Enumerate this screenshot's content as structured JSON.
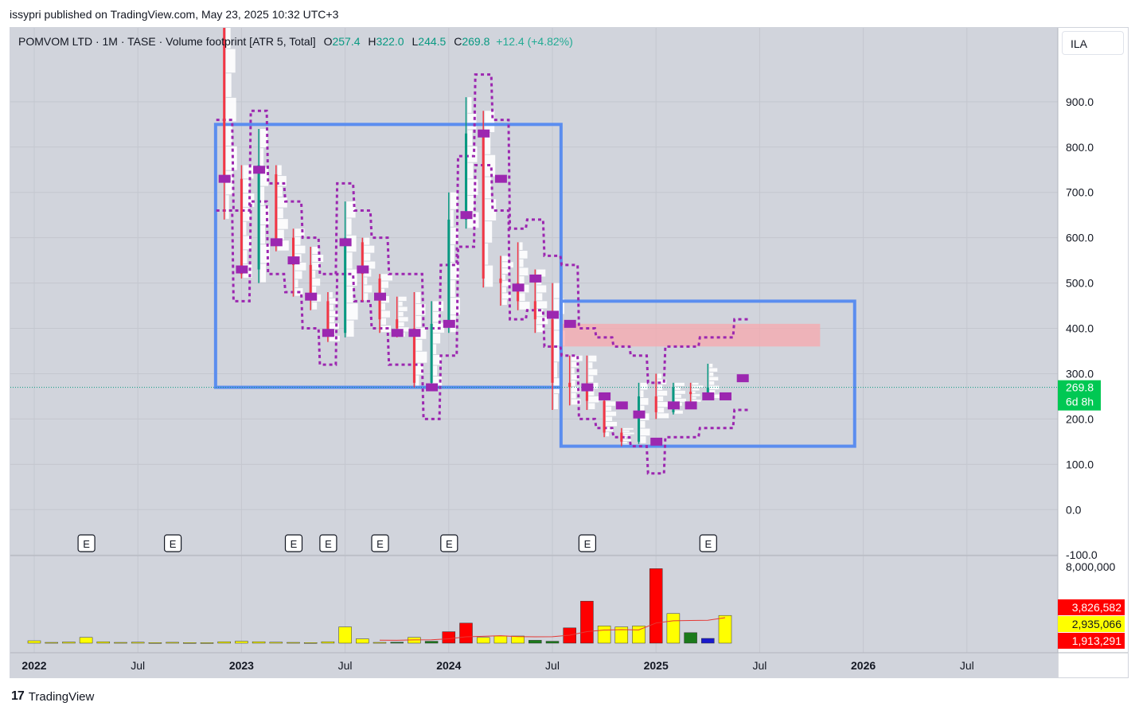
{
  "credit": "issypri published on TradingView.com, May 23, 2025 10:32 UTC+3",
  "legend": {
    "symbol": "POMVOM LTD · 1M · TASE · Volume footprint [ATR 5, Total]",
    "o_label": "O",
    "o_value": "257.4",
    "h_label": "H",
    "h_value": "322.0",
    "l_label": "L",
    "l_value": "244.5",
    "c_label": "C",
    "c_value": "269.8",
    "change": "+12.4 (+4.82%)"
  },
  "currency": "ILA",
  "footer": {
    "logo_mark": "17",
    "logo_text": "TradingView"
  },
  "colors": {
    "up": "#089981",
    "down": "#f23645",
    "poc": "#9c27b0",
    "box": "#5b8def",
    "zone": "#f7a8ad",
    "volume_yellow": "#ffff00",
    "volume_red": "#ff0000",
    "volume_green": "#1b7a1b",
    "volume_blue": "#1a1acc",
    "price_label": "#00c853"
  },
  "chart_data": {
    "type": "candlestick",
    "interval": "1M",
    "y_ticks": [
      "900.0",
      "800.0",
      "700.0",
      "600.0",
      "500.0",
      "400.0",
      "300.0",
      "200.0",
      "100.0",
      "0.0",
      "-100.0"
    ],
    "y_tick_values": [
      900,
      800,
      700,
      600,
      500,
      400,
      300,
      200,
      100,
      0,
      -100
    ],
    "ylim": [
      -100,
      1070
    ],
    "x_labels": [
      "2022",
      "Jul",
      "2023",
      "Jul",
      "2024",
      "Jul",
      "2025",
      "Jul",
      "2026",
      "Jul"
    ],
    "x_label_index": [
      0,
      6,
      12,
      18,
      24,
      30,
      36,
      42,
      48,
      54
    ],
    "last_price_label": "269.8",
    "countdown_label": "6d 8h",
    "last_price": 269.8,
    "earnings_markers": {
      "label": "E",
      "month_index": [
        3,
        8,
        15,
        17,
        20,
        24,
        32,
        39
      ]
    },
    "candles": [
      {
        "i": 11,
        "o": 1070,
        "h": 1070,
        "l": 640,
        "c": 730
      },
      {
        "i": 12,
        "o": 730,
        "h": 760,
        "l": 510,
        "c": 520
      },
      {
        "i": 13,
        "o": 530,
        "h": 840,
        "l": 500,
        "c": 760
      },
      {
        "i": 14,
        "o": 740,
        "h": 760,
        "l": 570,
        "c": 590
      },
      {
        "i": 15,
        "o": 600,
        "h": 620,
        "l": 470,
        "c": 540
      },
      {
        "i": 16,
        "o": 540,
        "h": 580,
        "l": 440,
        "c": 470
      },
      {
        "i": 17,
        "o": 460,
        "h": 480,
        "l": 370,
        "c": 390
      },
      {
        "i": 18,
        "o": 390,
        "h": 680,
        "l": 380,
        "c": 600
      },
      {
        "i": 19,
        "o": 590,
        "h": 600,
        "l": 460,
        "c": 520
      },
      {
        "i": 20,
        "o": 510,
        "h": 520,
        "l": 390,
        "c": 420
      },
      {
        "i": 21,
        "o": 420,
        "h": 470,
        "l": 380,
        "c": 400
      },
      {
        "i": 22,
        "o": 400,
        "h": 480,
        "l": 270,
        "c": 280
      },
      {
        "i": 23,
        "o": 280,
        "h": 460,
        "l": 270,
        "c": 410
      },
      {
        "i": 24,
        "o": 410,
        "h": 700,
        "l": 390,
        "c": 640
      },
      {
        "i": 25,
        "o": 640,
        "h": 910,
        "l": 620,
        "c": 830
      },
      {
        "i": 26,
        "o": 830,
        "h": 880,
        "l": 490,
        "c": 510
      },
      {
        "i": 27,
        "o": 510,
        "h": 560,
        "l": 450,
        "c": 500
      },
      {
        "i": 28,
        "o": 500,
        "h": 590,
        "l": 440,
        "c": 460
      },
      {
        "i": 29,
        "o": 460,
        "h": 530,
        "l": 390,
        "c": 420
      },
      {
        "i": 30,
        "o": 420,
        "h": 500,
        "l": 220,
        "c": 280
      },
      {
        "i": 31,
        "o": 280,
        "h": 340,
        "l": 230,
        "c": 270
      },
      {
        "i": 32,
        "o": 270,
        "h": 340,
        "l": 220,
        "c": 240
      },
      {
        "i": 33,
        "o": 240,
        "h": 250,
        "l": 160,
        "c": 170
      },
      {
        "i": 34,
        "o": 170,
        "h": 180,
        "l": 140,
        "c": 150
      },
      {
        "i": 35,
        "o": 150,
        "h": 280,
        "l": 145,
        "c": 250
      },
      {
        "i": 36,
        "o": 250,
        "h": 300,
        "l": 200,
        "c": 215
      },
      {
        "i": 37,
        "o": 215,
        "h": 280,
        "l": 210,
        "c": 270
      },
      {
        "i": 38,
        "o": 260,
        "h": 280,
        "l": 230,
        "c": 255
      },
      {
        "i": 39,
        "o": 257.4,
        "h": 322.0,
        "l": 244.5,
        "c": 269.8
      }
    ],
    "poc_levels": [
      {
        "i": 11,
        "y": 730
      },
      {
        "i": 12,
        "y": 530
      },
      {
        "i": 13,
        "y": 750
      },
      {
        "i": 14,
        "y": 590
      },
      {
        "i": 15,
        "y": 550
      },
      {
        "i": 16,
        "y": 470
      },
      {
        "i": 17,
        "y": 390
      },
      {
        "i": 18,
        "y": 590
      },
      {
        "i": 19,
        "y": 530
      },
      {
        "i": 20,
        "y": 470
      },
      {
        "i": 21,
        "y": 390
      },
      {
        "i": 22,
        "y": 390
      },
      {
        "i": 23,
        "y": 270
      },
      {
        "i": 24,
        "y": 410
      },
      {
        "i": 25,
        "y": 650
      },
      {
        "i": 26,
        "y": 830
      },
      {
        "i": 27,
        "y": 730
      },
      {
        "i": 28,
        "y": 490
      },
      {
        "i": 29,
        "y": 510
      },
      {
        "i": 30,
        "y": 430
      },
      {
        "i": 31,
        "y": 410
      },
      {
        "i": 32,
        "y": 270
      },
      {
        "i": 33,
        "y": 250
      },
      {
        "i": 34,
        "y": 230
      },
      {
        "i": 35,
        "y": 210
      },
      {
        "i": 36,
        "y": 150
      },
      {
        "i": 37,
        "y": 230
      },
      {
        "i": 38,
        "y": 230
      },
      {
        "i": 39,
        "y": 250
      },
      {
        "i": 40,
        "y": 250
      },
      {
        "i": 41,
        "y": 290
      }
    ],
    "boxes": [
      {
        "i0": 10.5,
        "i1": 30.5,
        "top": 850,
        "bottom": 270
      },
      {
        "i0": 30.5,
        "i1": 47.5,
        "top": 460,
        "bottom": 140
      }
    ],
    "zone": {
      "i0": 30.5,
      "i1": 45.5,
      "top": 410,
      "bottom": 360
    },
    "volume_axis_label": "8,000,000",
    "volume_ylim": [
      0,
      8000000
    ],
    "volume_labels": [
      "3,826,582",
      "2,935,066",
      "1,913,291"
    ],
    "volume_label_values": [
      3826582,
      2935066,
      1913291
    ],
    "volume": [
      {
        "i": 0,
        "v": 250000,
        "c": "yellow"
      },
      {
        "i": 1,
        "v": 80000,
        "c": "yellow"
      },
      {
        "i": 2,
        "v": 120000,
        "c": "yellow"
      },
      {
        "i": 3,
        "v": 600000,
        "c": "yellow"
      },
      {
        "i": 4,
        "v": 150000,
        "c": "yellow"
      },
      {
        "i": 5,
        "v": 80000,
        "c": "yellow"
      },
      {
        "i": 6,
        "v": 100000,
        "c": "yellow"
      },
      {
        "i": 7,
        "v": 60000,
        "c": "yellow"
      },
      {
        "i": 8,
        "v": 90000,
        "c": "yellow"
      },
      {
        "i": 9,
        "v": 60000,
        "c": "yellow"
      },
      {
        "i": 10,
        "v": 50000,
        "c": "yellow"
      },
      {
        "i": 11,
        "v": 150000,
        "c": "yellow"
      },
      {
        "i": 12,
        "v": 200000,
        "c": "yellow"
      },
      {
        "i": 13,
        "v": 150000,
        "c": "yellow"
      },
      {
        "i": 14,
        "v": 100000,
        "c": "yellow"
      },
      {
        "i": 15,
        "v": 80000,
        "c": "yellow"
      },
      {
        "i": 16,
        "v": 60000,
        "c": "yellow"
      },
      {
        "i": 17,
        "v": 150000,
        "c": "yellow"
      },
      {
        "i": 18,
        "v": 1700000,
        "c": "yellow"
      },
      {
        "i": 19,
        "v": 450000,
        "c": "yellow"
      },
      {
        "i": 20,
        "v": 80000,
        "c": "yellow"
      },
      {
        "i": 21,
        "v": 100000,
        "c": "green"
      },
      {
        "i": 22,
        "v": 600000,
        "c": "yellow"
      },
      {
        "i": 23,
        "v": 200000,
        "c": "green"
      },
      {
        "i": 24,
        "v": 1200000,
        "c": "red"
      },
      {
        "i": 25,
        "v": 2100000,
        "c": "red"
      },
      {
        "i": 26,
        "v": 600000,
        "c": "yellow"
      },
      {
        "i": 27,
        "v": 750000,
        "c": "yellow"
      },
      {
        "i": 28,
        "v": 750000,
        "c": "yellow"
      },
      {
        "i": 29,
        "v": 300000,
        "c": "green"
      },
      {
        "i": 30,
        "v": 200000,
        "c": "green"
      },
      {
        "i": 31,
        "v": 1600000,
        "c": "red"
      },
      {
        "i": 32,
        "v": 4400000,
        "c": "red"
      },
      {
        "i": 33,
        "v": 1800000,
        "c": "yellow"
      },
      {
        "i": 34,
        "v": 1700000,
        "c": "yellow"
      },
      {
        "i": 35,
        "v": 1800000,
        "c": "yellow"
      },
      {
        "i": 36,
        "v": 7800000,
        "c": "red"
      },
      {
        "i": 37,
        "v": 3100000,
        "c": "yellow"
      },
      {
        "i": 38,
        "v": 1100000,
        "c": "green"
      },
      {
        "i": 39,
        "v": 500000,
        "c": "blue"
      },
      {
        "i": 40,
        "v": 2900000,
        "c": "yellow"
      }
    ]
  }
}
